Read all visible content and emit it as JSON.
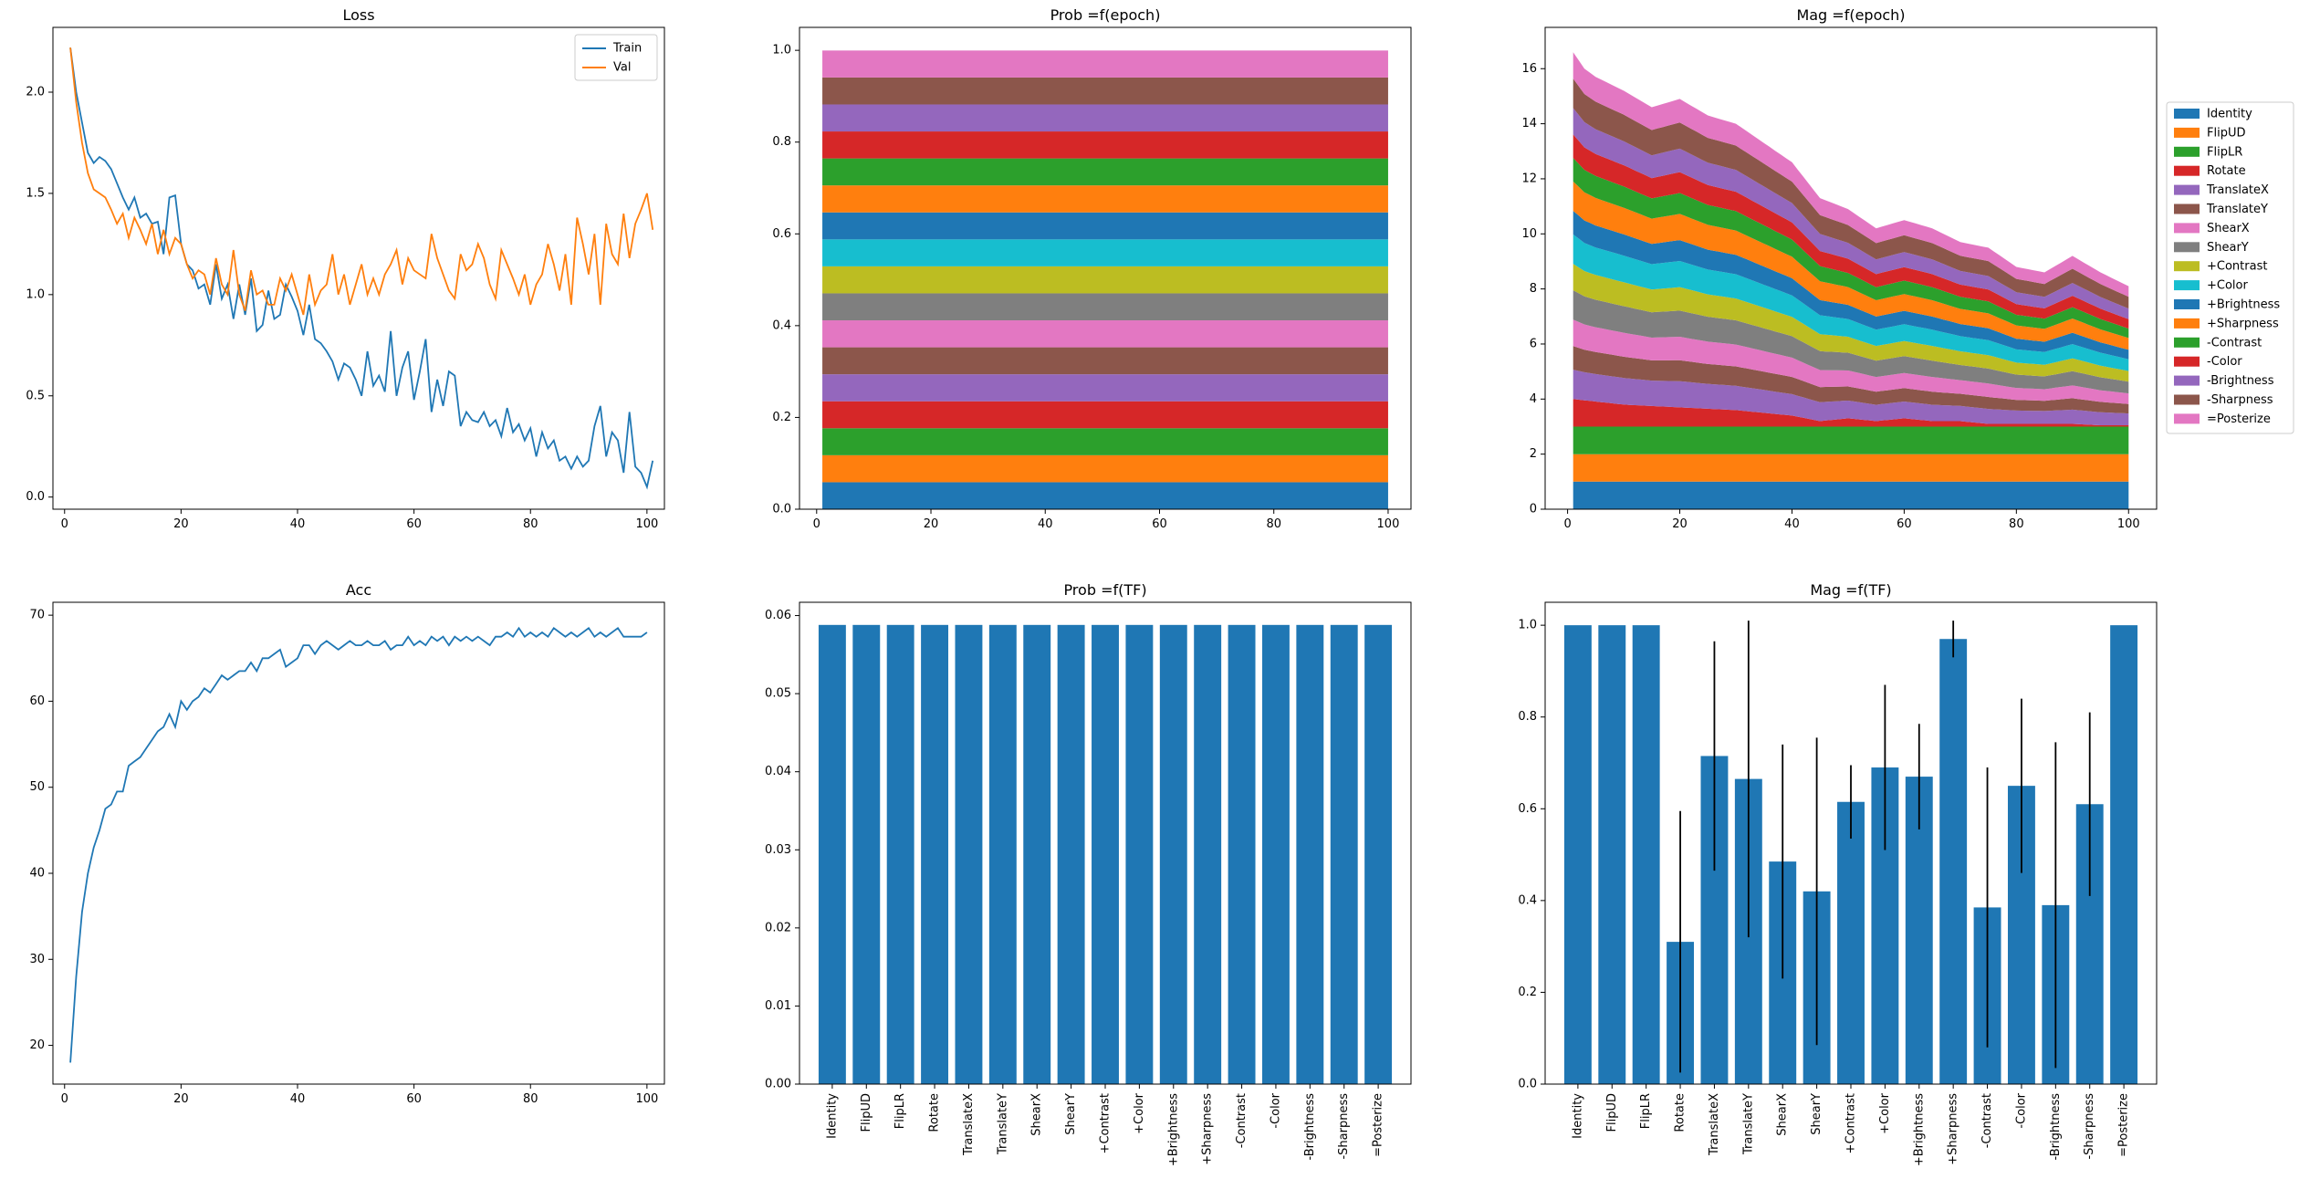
{
  "tf_names": [
    "Identity",
    "FlipUD",
    "FlipLR",
    "Rotate",
    "TranslateX",
    "TranslateY",
    "ShearX",
    "ShearY",
    "+Contrast",
    "+Color",
    "+Brightness",
    "+Sharpness",
    "-Contrast",
    "-Color",
    "-Brightness",
    "-Sharpness",
    "=Posterize"
  ],
  "colors": {
    "blue": "#1f77b4",
    "orange": "#ff7f0e",
    "palette": [
      "#1f77b4",
      "#ff7f0e",
      "#2ca02c",
      "#d62728",
      "#9467bd",
      "#8c564b",
      "#e377c2",
      "#7f7f7f",
      "#bcbd22",
      "#17becf",
      "#1f77b4",
      "#ff7f0e",
      "#2ca02c",
      "#d62728",
      "#9467bd",
      "#8c564b",
      "#e377c2"
    ]
  },
  "chart_data": [
    {
      "type": "line",
      "title": "Loss",
      "xlim": [
        -2,
        103
      ],
      "ylim": [
        -0.06,
        2.32
      ],
      "xticks": [
        0,
        20,
        40,
        60,
        80,
        100
      ],
      "yticks": [
        0.0,
        0.5,
        1.0,
        1.5,
        2.0
      ],
      "ytick_labels": [
        "0.0",
        "0.5",
        "1.0",
        "1.5",
        "2.0"
      ],
      "legend_position": "upper right",
      "grid": false,
      "series": [
        {
          "name": "Train",
          "x_start": 1,
          "x_step": 1,
          "values": [
            2.22,
            2.0,
            1.85,
            1.7,
            1.65,
            1.68,
            1.66,
            1.62,
            1.55,
            1.48,
            1.42,
            1.48,
            1.38,
            1.4,
            1.35,
            1.36,
            1.2,
            1.48,
            1.49,
            1.25,
            1.15,
            1.12,
            1.03,
            1.05,
            0.95,
            1.15,
            0.98,
            1.05,
            0.88,
            1.05,
            0.9,
            1.08,
            0.82,
            0.85,
            1.02,
            0.88,
            0.9,
            1.05,
            0.99,
            0.92,
            0.8,
            0.95,
            0.78,
            0.76,
            0.72,
            0.67,
            0.58,
            0.66,
            0.64,
            0.58,
            0.5,
            0.72,
            0.55,
            0.6,
            0.52,
            0.82,
            0.5,
            0.64,
            0.72,
            0.48,
            0.62,
            0.78,
            0.42,
            0.58,
            0.45,
            0.62,
            0.6,
            0.35,
            0.42,
            0.38,
            0.37,
            0.42,
            0.35,
            0.38,
            0.3,
            0.44,
            0.32,
            0.36,
            0.28,
            0.34,
            0.2,
            0.32,
            0.24,
            0.28,
            0.18,
            0.2,
            0.14,
            0.2,
            0.15,
            0.18,
            0.35,
            0.45,
            0.2,
            0.32,
            0.28,
            0.12,
            0.42,
            0.15,
            0.12,
            0.05,
            0.18
          ]
        },
        {
          "name": "Val",
          "x_start": 1,
          "x_step": 1,
          "values": [
            2.22,
            1.95,
            1.75,
            1.6,
            1.52,
            1.5,
            1.48,
            1.42,
            1.35,
            1.4,
            1.28,
            1.38,
            1.32,
            1.25,
            1.35,
            1.2,
            1.32,
            1.2,
            1.28,
            1.25,
            1.15,
            1.08,
            1.12,
            1.1,
            1.0,
            1.18,
            1.05,
            1.0,
            1.22,
            1.0,
            0.92,
            1.12,
            1.0,
            1.02,
            0.95,
            0.95,
            1.08,
            1.02,
            1.1,
            1.0,
            0.9,
            1.1,
            0.95,
            1.02,
            1.05,
            1.2,
            1.0,
            1.1,
            0.95,
            1.05,
            1.15,
            1.0,
            1.08,
            1.0,
            1.1,
            1.15,
            1.22,
            1.05,
            1.18,
            1.12,
            1.1,
            1.08,
            1.3,
            1.18,
            1.1,
            1.02,
            0.98,
            1.2,
            1.12,
            1.15,
            1.25,
            1.18,
            1.05,
            0.98,
            1.22,
            1.15,
            1.08,
            1.0,
            1.1,
            0.95,
            1.05,
            1.1,
            1.25,
            1.15,
            1.02,
            1.2,
            0.95,
            1.38,
            1.25,
            1.1,
            1.3,
            0.95,
            1.35,
            1.2,
            1.15,
            1.4,
            1.18,
            1.35,
            1.42,
            1.5,
            1.32
          ]
        }
      ]
    },
    {
      "type": "area",
      "title": "Prob =f(epoch)",
      "stacked": true,
      "xlim": [
        -3,
        104
      ],
      "ylim": [
        0.0,
        1.05
      ],
      "xticks": [
        0,
        20,
        40,
        60,
        80,
        100
      ],
      "yticks": [
        0.0,
        0.2,
        0.4,
        0.6,
        0.8,
        1.0
      ],
      "ytick_labels": [
        "0.0",
        "0.2",
        "0.4",
        "0.6",
        "0.8",
        "1.0"
      ],
      "x_range": [
        1,
        100
      ],
      "series_values": [
        0.0588,
        0.0588,
        0.0588,
        0.0588,
        0.0588,
        0.0588,
        0.0588,
        0.0588,
        0.0588,
        0.0588,
        0.0588,
        0.0588,
        0.0588,
        0.0588,
        0.0588,
        0.0588,
        0.0588
      ]
    },
    {
      "type": "area",
      "title": "Mag =f(epoch)",
      "stacked": true,
      "xlim": [
        -4,
        105
      ],
      "ylim": [
        0.0,
        17.5
      ],
      "xticks": [
        0,
        20,
        40,
        60,
        80,
        100
      ],
      "yticks": [
        0,
        2,
        4,
        6,
        8,
        10,
        12,
        14,
        16
      ],
      "ytick_labels": [
        "0",
        "2",
        "4",
        "6",
        "8",
        "10",
        "12",
        "14",
        "16"
      ],
      "legend_position": "right",
      "fixed_series": [
        1,
        1,
        1
      ],
      "total_curve": {
        "x": [
          1,
          3,
          5,
          10,
          15,
          20,
          25,
          30,
          35,
          40,
          45,
          50,
          55,
          60,
          65,
          70,
          75,
          80,
          85,
          90,
          95,
          100
        ],
        "y": [
          16.6,
          16.0,
          15.7,
          15.2,
          14.6,
          14.9,
          14.3,
          14.0,
          13.3,
          12.6,
          11.3,
          10.9,
          10.2,
          10.5,
          10.2,
          9.7,
          9.5,
          8.8,
          8.6,
          9.2,
          8.6,
          8.1
        ]
      },
      "first_stack_top": {
        "x": [
          1,
          10,
          20,
          30,
          35,
          40,
          45,
          50,
          55,
          60,
          65,
          70,
          75,
          80,
          85,
          90,
          95,
          100
        ],
        "y": [
          4.0,
          3.8,
          3.7,
          3.6,
          3.5,
          3.4,
          3.2,
          3.3,
          3.2,
          3.3,
          3.2,
          3.2,
          3.1,
          3.1,
          3.1,
          3.1,
          3.05,
          3.05
        ]
      },
      "series_variable_weights": [
        1.0,
        1.0,
        0.8,
        0.9,
        1.0,
        0.9,
        1.0,
        0.8,
        1.0,
        0.8,
        0.8,
        0.9,
        1.0,
        0.9
      ]
    },
    {
      "type": "line",
      "title": "Acc",
      "xlim": [
        -2,
        103
      ],
      "ylim": [
        15.5,
        71.5
      ],
      "xticks": [
        0,
        20,
        40,
        60,
        80,
        100
      ],
      "yticks": [
        20,
        30,
        40,
        50,
        60,
        70
      ],
      "ytick_labels": [
        "20",
        "30",
        "40",
        "50",
        "60",
        "70"
      ],
      "series": [
        {
          "name": "",
          "x_start": 1,
          "x_step": 1,
          "values": [
            18.0,
            28.0,
            35.5,
            40.0,
            43.0,
            45.0,
            47.5,
            48.0,
            49.5,
            49.5,
            52.5,
            53.0,
            53.5,
            54.5,
            55.5,
            56.5,
            57.0,
            58.5,
            57.0,
            60.0,
            59.0,
            60.0,
            60.5,
            61.5,
            61.0,
            62.0,
            63.0,
            62.5,
            63.0,
            63.5,
            63.5,
            64.5,
            63.5,
            65.0,
            65.0,
            65.5,
            66.0,
            64.0,
            64.5,
            65.0,
            66.5,
            66.5,
            65.5,
            66.5,
            67.0,
            66.5,
            66.0,
            66.5,
            67.0,
            66.5,
            66.5,
            67.0,
            66.5,
            66.5,
            67.0,
            66.0,
            66.5,
            66.5,
            67.5,
            66.5,
            67.0,
            66.5,
            67.5,
            67.0,
            67.5,
            66.5,
            67.5,
            67.0,
            67.5,
            67.0,
            67.5,
            67.0,
            66.5,
            67.5,
            67.5,
            68.0,
            67.5,
            68.5,
            67.5,
            68.0,
            67.5,
            68.0,
            67.5,
            68.5,
            68.0,
            67.5,
            68.0,
            67.5,
            68.0,
            68.5,
            67.5,
            68.0,
            67.5,
            68.0,
            68.5,
            67.5,
            67.5,
            67.5,
            67.5,
            68.0
          ]
        }
      ]
    },
    {
      "type": "bar",
      "title": "Prob =f(TF)",
      "categories": [
        "Identity",
        "FlipUD",
        "FlipLR",
        "Rotate",
        "TranslateX",
        "TranslateY",
        "ShearX",
        "ShearY",
        "+Contrast",
        "+Color",
        "+Brightness",
        "+Sharpness",
        "-Contrast",
        "-Color",
        "-Brightness",
        "-Sharpness",
        "=Posterize"
      ],
      "values": [
        0.0588,
        0.0588,
        0.0588,
        0.0588,
        0.0588,
        0.0588,
        0.0588,
        0.0588,
        0.0588,
        0.0588,
        0.0588,
        0.0588,
        0.0588,
        0.0588,
        0.0588,
        0.0588,
        0.0588
      ],
      "ylim": [
        0.0,
        0.0617
      ],
      "yticks": [
        0.0,
        0.01,
        0.02,
        0.03,
        0.04,
        0.05,
        0.06
      ],
      "ytick_labels": [
        "0.00",
        "0.01",
        "0.02",
        "0.03",
        "0.04",
        "0.05",
        "0.06"
      ]
    },
    {
      "type": "bar",
      "title": "Mag =f(TF)",
      "categories": [
        "Identity",
        "FlipUD",
        "FlipLR",
        "Rotate",
        "TranslateX",
        "TranslateY",
        "ShearX",
        "ShearY",
        "+Contrast",
        "+Color",
        "+Brightness",
        "+Sharpness",
        "-Contrast",
        "-Color",
        "-Brightness",
        "-Sharpness",
        "=Posterize"
      ],
      "values": [
        1.0,
        1.0,
        1.0,
        0.31,
        0.715,
        0.665,
        0.485,
        0.42,
        0.615,
        0.69,
        0.67,
        0.97,
        0.385,
        0.65,
        0.39,
        0.61,
        1.0
      ],
      "errors": [
        0,
        0,
        0,
        0.285,
        0.25,
        0.345,
        0.255,
        0.335,
        0.08,
        0.18,
        0.115,
        0.04,
        0.305,
        0.19,
        0.355,
        0.2,
        0
      ],
      "ylim": [
        0.0,
        1.05
      ],
      "yticks": [
        0.0,
        0.2,
        0.4,
        0.6,
        0.8,
        1.0
      ],
      "ytick_labels": [
        "0.0",
        "0.2",
        "0.4",
        "0.6",
        "0.8",
        "1.0"
      ]
    }
  ]
}
